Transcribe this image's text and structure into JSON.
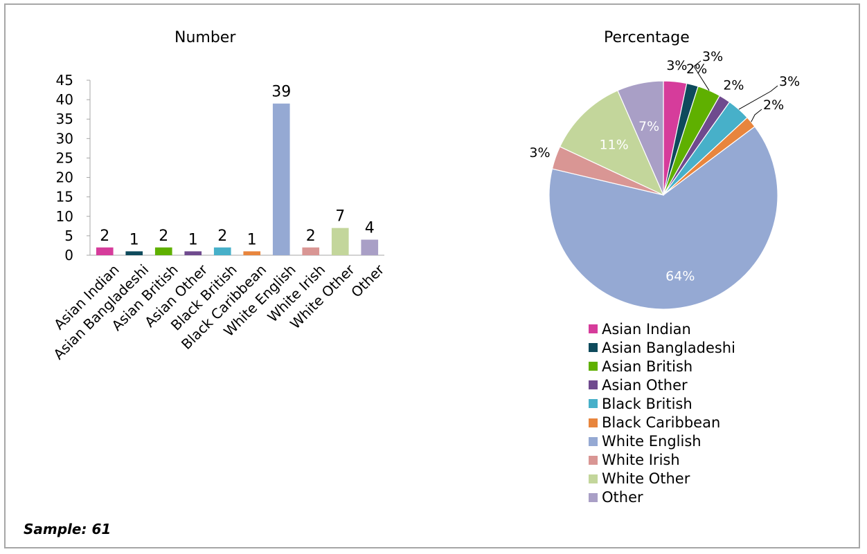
{
  "note": "Sample: 61",
  "chart_data": [
    {
      "type": "bar",
      "title": "Number",
      "categories": [
        "Asian Indian",
        "Asian Bangladeshi",
        "Asian British",
        "Asian Other",
        "Black British",
        "Black Caribbean",
        "White English",
        "White Irish",
        "White Other",
        "Other"
      ],
      "values": [
        2,
        1,
        2,
        1,
        2,
        1,
        39,
        2,
        7,
        4
      ],
      "data_labels": [
        "2",
        "1",
        "2",
        "1",
        "2",
        "1",
        "39",
        "2",
        "7",
        "4"
      ],
      "colors": [
        "#d63c9b",
        "#0e4a5c",
        "#5fb000",
        "#6f4a8e",
        "#47b0c9",
        "#e8853d",
        "#95a9d3",
        "#d99694",
        "#c3d69b",
        "#a99fc6"
      ],
      "ylim": [
        0,
        45
      ],
      "yticks": [
        0,
        5,
        10,
        15,
        20,
        25,
        30,
        35,
        40,
        45
      ],
      "xlabel": "",
      "ylabel": "",
      "grid": false,
      "legend": "none"
    },
    {
      "type": "pie",
      "title": "Percentage",
      "categories": [
        "Asian Indian",
        "Asian Bangladeshi",
        "Asian British",
        "Asian Other",
        "Black British",
        "Black Caribbean",
        "White English",
        "White Irish",
        "White Other",
        "Other"
      ],
      "values": [
        2,
        1,
        2,
        1,
        2,
        1,
        39,
        2,
        7,
        4
      ],
      "data_labels": [
        "3%",
        "2%",
        "3%",
        "2%",
        "3%",
        "2%",
        "64%",
        "3%",
        "11%",
        "7%"
      ],
      "colors": [
        "#d63c9b",
        "#0e4a5c",
        "#5fb000",
        "#6f4a8e",
        "#47b0c9",
        "#e8853d",
        "#95a9d3",
        "#d99694",
        "#c3d69b",
        "#a99fc6"
      ],
      "legend": "bottom"
    }
  ]
}
